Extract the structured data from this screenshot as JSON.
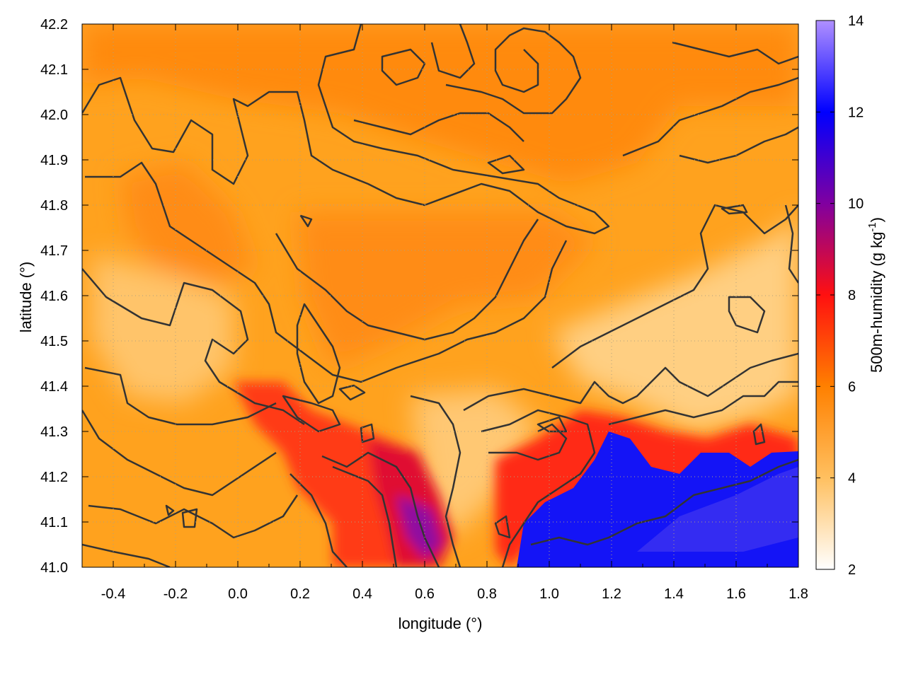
{
  "chart_data": {
    "type": "heatmap",
    "title": "",
    "xlabel": "longitude (°)",
    "ylabel": "latitude (°)",
    "xlim": [
      -0.5,
      1.8
    ],
    "ylim": [
      41.0,
      42.2
    ],
    "x_ticks": [
      "-0.4",
      "-0.2",
      "0.0",
      "0.2",
      "0.4",
      "0.6",
      "0.8",
      "1.0",
      "1.2",
      "1.4",
      "1.6",
      "1.8"
    ],
    "y_ticks": [
      "41.0",
      "41.1",
      "41.2",
      "41.3",
      "41.4",
      "41.5",
      "41.6",
      "41.7",
      "41.8",
      "41.9",
      "42.0",
      "42.1",
      "42.2"
    ],
    "colorbar": {
      "label_main": "500m-humidity (g kg",
      "label_sup": "-1",
      "label_end": ")",
      "range": [
        2,
        14
      ],
      "ticks": [
        "2",
        "4",
        "6",
        "8",
        "10",
        "12",
        "14"
      ],
      "stops": [
        {
          "value": 2,
          "color": "#ffffff"
        },
        {
          "value": 4,
          "color": "#ffc060"
        },
        {
          "value": 6,
          "color": "#ff8000"
        },
        {
          "value": 8,
          "color": "#ff1010"
        },
        {
          "value": 10,
          "color": "#8000a0"
        },
        {
          "value": 12,
          "color": "#0000ff"
        },
        {
          "value": 14,
          "color": "#b090ff"
        }
      ]
    },
    "grid": true,
    "contours": true,
    "field_regions": [
      {
        "name": "background",
        "approx_value": 5.0
      },
      {
        "name": "northern-orange-band",
        "approx_value": 6.0
      },
      {
        "name": "pale-dry-east",
        "approx_value": 3.8
      },
      {
        "name": "coastal-red-band",
        "approx_value": 8.0
      },
      {
        "name": "sea-humid-southeast",
        "approx_value": 12.0
      }
    ]
  }
}
